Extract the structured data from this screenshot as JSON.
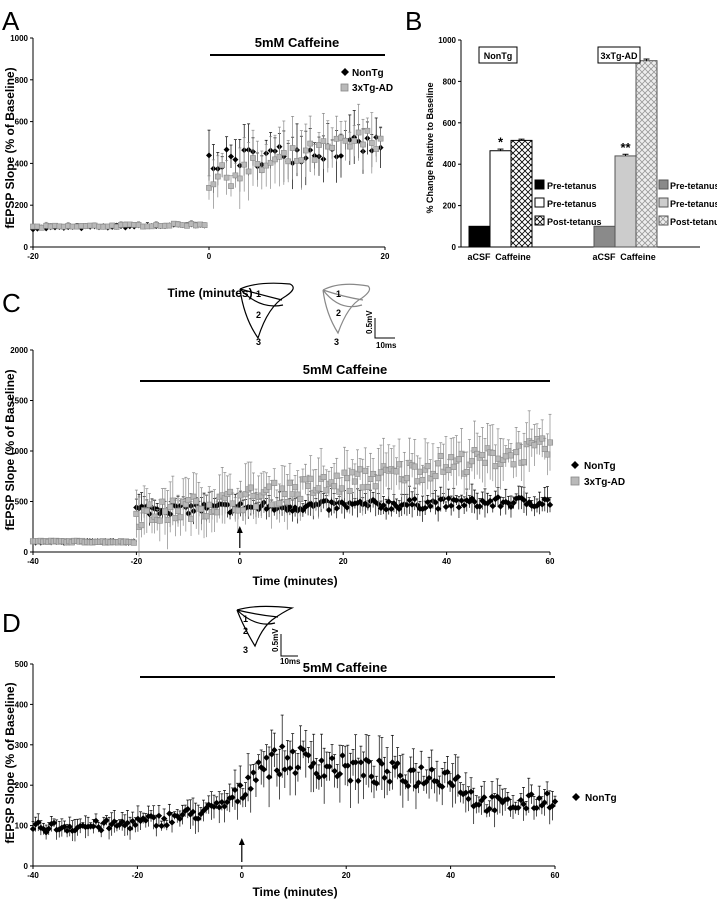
{
  "panels": {
    "A": {
      "letter": "A",
      "treatment": "5mM Caffeine",
      "xlabel": "Time (minutes)",
      "ylabel": "fEPSP Slope (% of Baseline)"
    },
    "B": {
      "letter": "B",
      "ylabel": "% Change Relative to Baseline"
    },
    "C": {
      "letter": "C",
      "treatment": "5mM Caffeine",
      "xlabel": "Time (minutes)",
      "ylabel": "fEPSP Slope (% of Baseline)",
      "scale_v": "0.5mV",
      "scale_t": "10ms",
      "trace_labels": [
        "1",
        "2",
        "3"
      ]
    },
    "D": {
      "letter": "D",
      "treatment": "5mM Caffeine",
      "xlabel": "Time (minutes)",
      "ylabel": "fEPSP Slope (% of Baseline)",
      "scale_v": "0.5mV",
      "scale_t": "10ms",
      "trace_labels": [
        "1",
        "2",
        "3"
      ]
    }
  },
  "colors": {
    "nontg": "#000000",
    "tg": "#b9b9b9",
    "tg_edge": "#888888"
  },
  "chart_data": [
    {
      "panel": "A",
      "type": "scatter",
      "xlim": [
        -20,
        20
      ],
      "ylim": [
        0,
        1000
      ],
      "xticks": [
        -20,
        0,
        20
      ],
      "yticks": [
        0,
        200,
        400,
        600,
        800,
        1000
      ],
      "legend": "top-right",
      "series": [
        {
          "name": "NonTg",
          "marker": "diamond",
          "segments": [
            {
              "x0": -20,
              "x1": -0.5,
              "n": 40,
              "mean": [
                90,
                105
              ],
              "err": 14
            },
            {
              "x0": 0,
              "x1": 19.5,
              "n": 40,
              "mean": [
                410,
                490
              ],
              "err": 120
            }
          ]
        },
        {
          "name": "3xTg-AD",
          "marker": "square",
          "segments": [
            {
              "x0": -20,
              "x1": -0.5,
              "n": 40,
              "mean": [
                95,
                108
              ],
              "err": 15
            },
            {
              "x0": 0,
              "x1": 19.5,
              "n": 40,
              "mean": [
                320,
                530
              ],
              "err": 140
            }
          ]
        }
      ]
    },
    {
      "panel": "B",
      "type": "bar",
      "ylim": [
        0,
        1000
      ],
      "yticks": [
        0,
        200,
        400,
        600,
        800,
        1000
      ],
      "groups": [
        {
          "name": "NonTg",
          "categories": [
            "aCSF",
            "Caffeine"
          ],
          "bars": [
            {
              "label": "Pre-tetanus",
              "value": 100,
              "fill": "solid-black"
            },
            {
              "label": "Pre-tetanus",
              "value": 465,
              "err": 8,
              "fill": "white",
              "sig": "*"
            },
            {
              "label": "Post-tetanus",
              "value": 515,
              "err": 6,
              "fill": "crosshatch"
            }
          ]
        },
        {
          "name": "3xTg-AD",
          "categories": [
            "aCSF",
            "Caffeine"
          ],
          "bars": [
            {
              "label": "Pre-tetanus",
              "value": 100,
              "fill": "solid-gray"
            },
            {
              "label": "Pre-tetanus",
              "value": 440,
              "err": 8,
              "fill": "light-gray",
              "sig": "**"
            },
            {
              "label": "Post-tetanus",
              "value": 900,
              "err": 8,
              "fill": "crosshatch-gray"
            }
          ]
        }
      ]
    },
    {
      "panel": "C",
      "type": "scatter",
      "xlim": [
        -40,
        60
      ],
      "ylim": [
        0,
        2000
      ],
      "xticks": [
        -40,
        -20,
        0,
        20,
        40,
        60
      ],
      "yticks": [
        0,
        500,
        1000,
        1500,
        2000
      ],
      "legend": "right",
      "series": [
        {
          "name": "NonTg",
          "marker": "diamond",
          "segments": [
            {
              "x0": -40,
              "x1": -20.5,
              "n": 40,
              "mean": [
                100,
                100
              ],
              "err": 20
            },
            {
              "x0": -20,
              "x1": 60,
              "n": 160,
              "mean": [
                420,
                500
              ],
              "err": 130
            }
          ]
        },
        {
          "name": "3xTg-AD",
          "marker": "square",
          "segments": [
            {
              "x0": -40,
              "x1": -20.5,
              "n": 40,
              "mean": [
                105,
                100
              ],
              "err": 20
            },
            {
              "x0": -20,
              "x1": 60,
              "n": 160,
              "mean": [
                350,
                1030
              ],
              "err": 280
            }
          ]
        }
      ]
    },
    {
      "panel": "D",
      "type": "scatter",
      "xlim": [
        -40,
        60
      ],
      "ylim": [
        0,
        500
      ],
      "xticks": [
        -40,
        -20,
        0,
        20,
        40,
        60
      ],
      "yticks": [
        0,
        100,
        200,
        300,
        400,
        500
      ],
      "legend": "right",
      "series": [
        {
          "name": "NonTg",
          "marker": "diamond",
          "profile": [
            [
              -40,
              95
            ],
            [
              -25,
              100
            ],
            [
              -15,
              115
            ],
            [
              -5,
              140
            ],
            [
              0,
              180
            ],
            [
              3,
              250
            ],
            [
              10,
              265
            ],
            [
              20,
              240
            ],
            [
              30,
              225
            ],
            [
              40,
              225
            ],
            [
              45,
              160
            ],
            [
              50,
              150
            ],
            [
              55,
              155
            ],
            [
              60,
              170
            ]
          ],
          "n": 200,
          "err": 50
        }
      ]
    }
  ]
}
